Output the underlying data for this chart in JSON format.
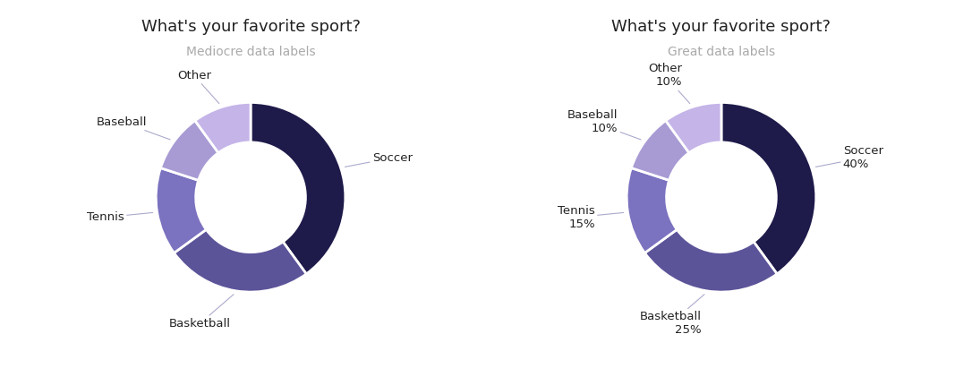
{
  "title": "What's your favorite sport?",
  "subtitle_left": "Mediocre data labels",
  "subtitle_right": "Great data labels",
  "categories": [
    "Soccer",
    "Basketball",
    "Tennis",
    "Baseball",
    "Other"
  ],
  "values": [
    40,
    25,
    15,
    10,
    10
  ],
  "colors": [
    "#1e1a4a",
    "#5c5499",
    "#7b72c0",
    "#a89bd4",
    "#c4b4e8"
  ],
  "label_color": "#222222",
  "subtitle_color": "#aaaaaa",
  "title_fontsize": 13,
  "subtitle_fontsize": 10,
  "label_fontsize": 9.5,
  "background_color": "#ffffff",
  "wedge_edge_color": "#ffffff",
  "wedge_linewidth": 2.0,
  "donut_width": 0.42,
  "annotation_line_color": "#aaaacc",
  "startangle": 90
}
